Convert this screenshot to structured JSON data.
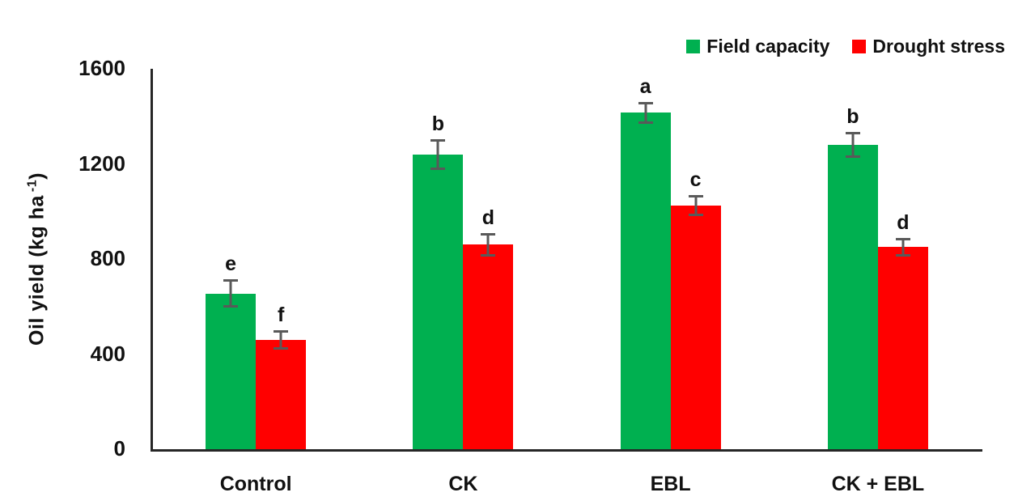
{
  "chart_data": {
    "type": "bar",
    "title": "",
    "categories": [
      "Control",
      "CK",
      "EBL",
      "CK + EBL"
    ],
    "series": [
      {
        "name": "Field capacity",
        "color": "#00B050",
        "values": [
          655,
          1240,
          1415,
          1280
        ],
        "errors": [
          60,
          65,
          45,
          55
        ],
        "letters": [
          "e",
          "b",
          "a",
          "b"
        ]
      },
      {
        "name": "Drought stress",
        "color": "#FF0000",
        "values": [
          460,
          860,
          1025,
          850
        ],
        "errors": [
          40,
          50,
          45,
          40
        ],
        "letters": [
          "f",
          "d",
          "c",
          "d"
        ]
      }
    ],
    "xlabel": "",
    "ylabel_parts": {
      "main": "Oil yield (kg ha",
      "sup": "-1",
      "close": ")"
    },
    "ylim": [
      0,
      1600
    ],
    "yticks": [
      0,
      400,
      800,
      1200,
      1600
    ],
    "grid": false,
    "legend_position": "top-right",
    "error_bar_color": "#595959",
    "axis_color": "#262626"
  }
}
